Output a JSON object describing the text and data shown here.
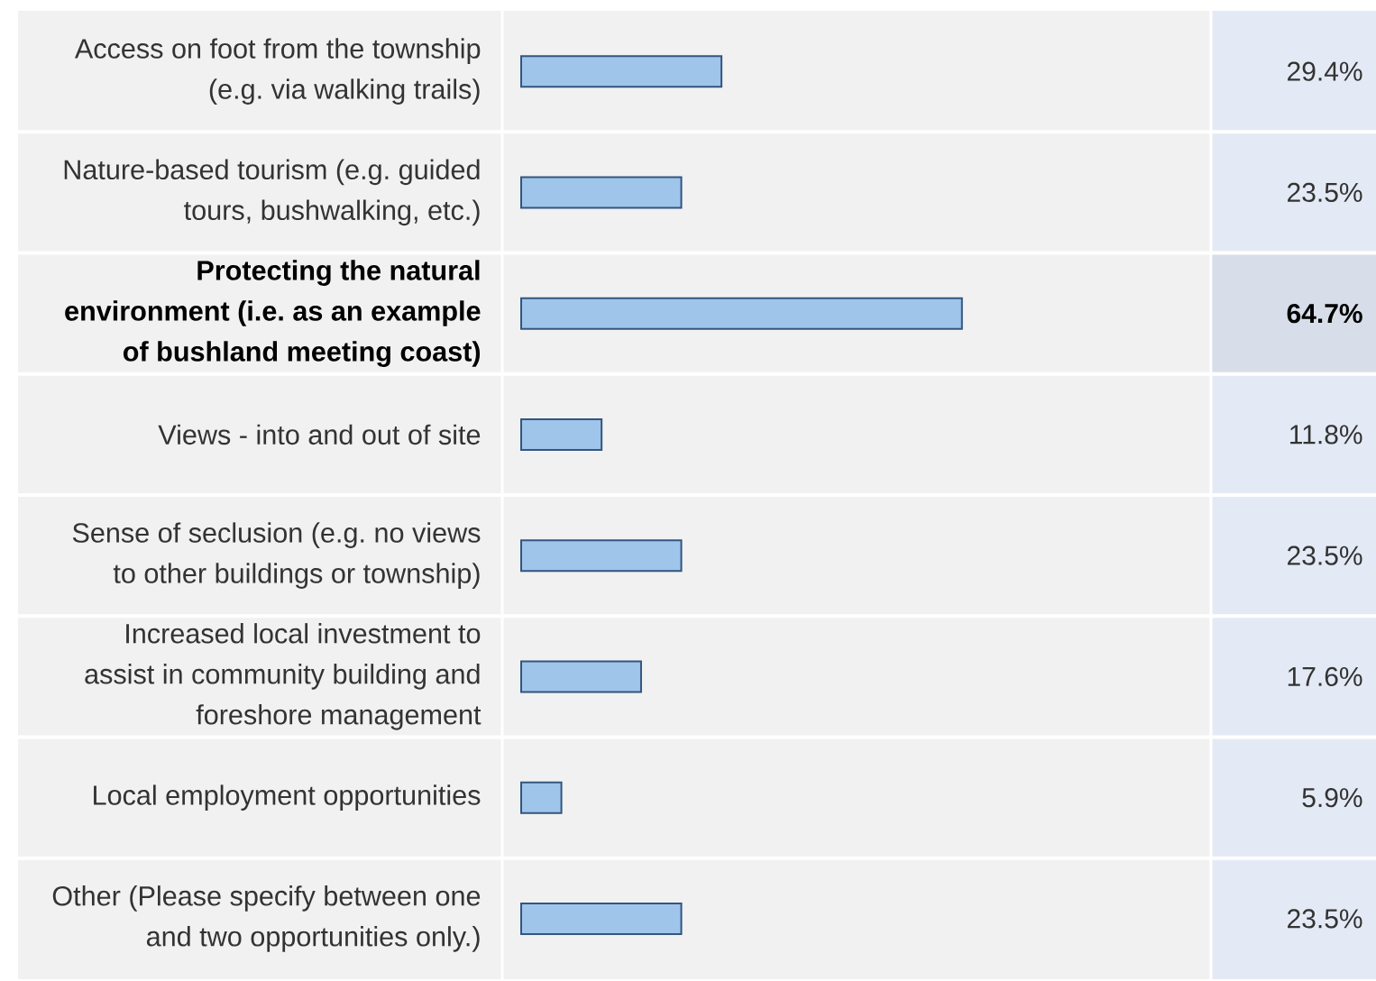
{
  "chart_data": {
    "type": "bar",
    "orientation": "horizontal",
    "categories": [
      "Access on foot from the township (e.g. via walking trails)",
      "Nature-based tourism (e.g. guided tours, bushwalking, etc.)",
      "Protecting the natural environment (i.e. as an example of bushland meeting coast)",
      "Views - into and out of site",
      "Sense of seclusion (e.g. no views to other buildings or township)",
      "Increased local investment to assist in community building and foreshore management",
      "Local employment opportunities",
      "Other (Please specify between one and two opportunities only.)"
    ],
    "values": [
      29.4,
      23.5,
      64.7,
      11.8,
      23.5,
      17.6,
      5.9,
      23.5
    ],
    "value_labels": [
      "29.4%",
      "23.5%",
      "64.7%",
      "11.8%",
      "23.5%",
      "17.6%",
      "5.9%",
      "23.5%"
    ],
    "color": "#9fc5ea",
    "tick_labels": "y"
  }
}
